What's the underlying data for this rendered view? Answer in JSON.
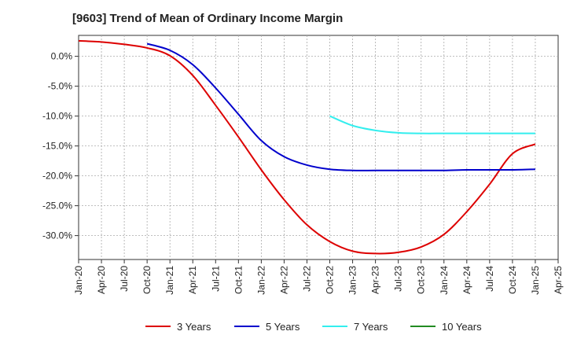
{
  "title": "[9603]  Trend of Mean of Ordinary Income Margin",
  "chart_data": {
    "type": "line",
    "title": "[9603]  Trend of Mean of Ordinary Income Margin",
    "x_ticks": [
      "Jan-20",
      "Apr-20",
      "Jul-20",
      "Oct-20",
      "Jan-21",
      "Apr-21",
      "Jul-21",
      "Oct-21",
      "Jan-22",
      "Apr-22",
      "Jul-22",
      "Oct-22",
      "Jan-23",
      "Apr-23",
      "Jul-23",
      "Oct-23",
      "Jan-24",
      "Apr-24",
      "Jul-24",
      "Oct-24",
      "Jan-25",
      "Apr-25"
    ],
    "y_ticks": [
      {
        "value": 0,
        "label": "0.0%"
      },
      {
        "value": -5,
        "label": "-5.0%"
      },
      {
        "value": -10,
        "label": "-10.0%"
      },
      {
        "value": -15,
        "label": "-15.0%"
      },
      {
        "value": -20,
        "label": "-20.0%"
      },
      {
        "value": -25,
        "label": "-25.0%"
      },
      {
        "value": -30,
        "label": "-30.0%"
      }
    ],
    "ylim": [
      -34,
      3.5
    ],
    "grid": true,
    "legend_position": "bottom",
    "series": [
      {
        "name": "3 Years",
        "color": "#dd0000",
        "x": [
          "Jan-20",
          "Apr-20",
          "Jul-20",
          "Oct-20",
          "Jan-21",
          "Apr-21",
          "Jul-21",
          "Oct-21",
          "Jan-22",
          "Apr-22",
          "Jul-22",
          "Oct-22",
          "Jan-23",
          "Apr-23",
          "Jul-23",
          "Oct-23",
          "Jan-24",
          "Apr-24",
          "Jul-24",
          "Oct-24",
          "Jan-25"
        ],
        "values": [
          2.6,
          2.4,
          2.0,
          1.4,
          0.1,
          -3.2,
          -8.2,
          -13.5,
          -19.0,
          -24.0,
          -28.2,
          -31.0,
          -32.6,
          -33.0,
          -32.8,
          -31.9,
          -29.8,
          -26.0,
          -21.4,
          -16.3,
          -14.7
        ]
      },
      {
        "name": "5 Years",
        "color": "#0000cc",
        "x": [
          "Oct-20",
          "Jan-21",
          "Apr-21",
          "Jul-21",
          "Oct-21",
          "Jan-22",
          "Apr-22",
          "Jul-22",
          "Oct-22",
          "Jan-23",
          "Apr-23",
          "Jul-23",
          "Oct-23",
          "Jan-24",
          "Apr-24",
          "Jul-24",
          "Oct-24",
          "Jan-25"
        ],
        "values": [
          2.1,
          1.0,
          -1.4,
          -5.3,
          -9.7,
          -14.1,
          -16.8,
          -18.2,
          -18.9,
          -19.1,
          -19.1,
          -19.1,
          -19.1,
          -19.1,
          -19.0,
          -19.0,
          -19.0,
          -18.9
        ]
      },
      {
        "name": "7 Years",
        "color": "#33eeee",
        "x": [
          "Oct-22",
          "Jan-23",
          "Apr-23",
          "Jul-23",
          "Oct-23",
          "Jan-24",
          "Apr-24",
          "Jul-24",
          "Oct-24",
          "Jan-25"
        ],
        "values": [
          -10.0,
          -11.6,
          -12.4,
          -12.8,
          -12.9,
          -12.9,
          -12.9,
          -12.9,
          -12.9,
          -12.9
        ]
      },
      {
        "name": "10 Years",
        "color": "#228b22",
        "x": [],
        "values": []
      }
    ]
  }
}
